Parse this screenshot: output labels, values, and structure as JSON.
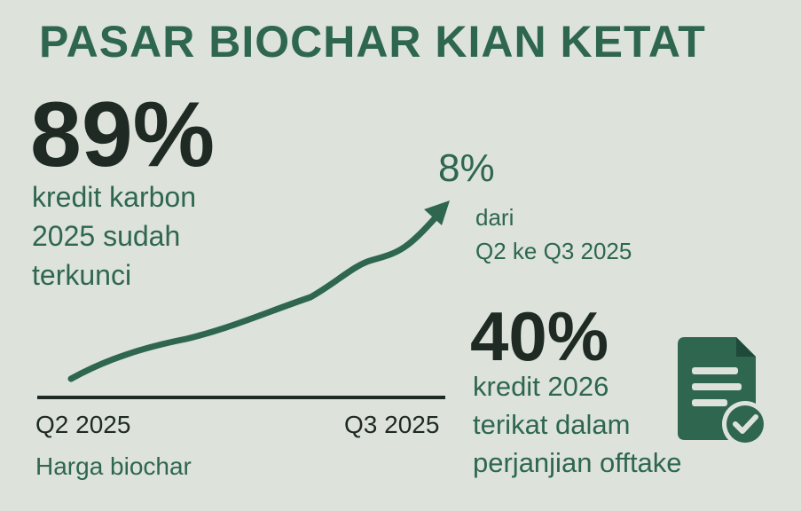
{
  "title": "PASAR BIOCHAR KIAN KETAT",
  "stat_main": {
    "value": "89%",
    "lines": [
      "kredit karbon",
      "2025 sudah",
      "terkunci"
    ]
  },
  "chart_data": {
    "type": "line",
    "x": [
      "Q2 2025",
      "Q3 2025"
    ],
    "ylabel": "",
    "xlabel": "",
    "caption": "Harga biochar",
    "change_label": "8%",
    "change_desc": [
      "dari",
      "Q2 ke Q3 2025"
    ]
  },
  "stat_secondary": {
    "value": "40%",
    "lines": [
      "kredit 2026",
      "terikat dalam",
      "perjanjian offtake"
    ]
  },
  "icons": {
    "document": "document-check-icon"
  },
  "colors": {
    "background": "#dde3db",
    "accent": "#2e6650",
    "dark": "#1f2a24"
  }
}
